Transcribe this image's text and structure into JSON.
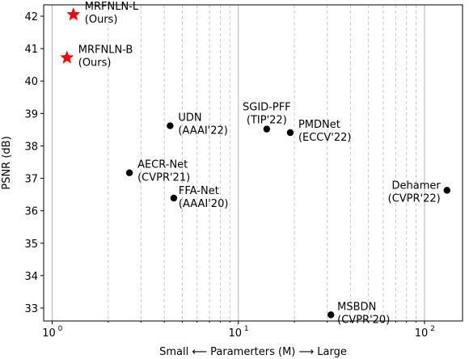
{
  "chart_data": {
    "type": "scatter",
    "title": "",
    "xlabel": "Small ⟵ Paramerters (M) ⟶ Large",
    "ylabel": "PSNR (dB)",
    "xscale": "log",
    "xlim": [
      0.9,
      160
    ],
    "ylim": [
      32.6,
      42.35
    ],
    "grid": "x-axis major (solid) and minor (dashed) lines",
    "x_ticks": [
      {
        "value": 1,
        "label": "10",
        "exp": "0"
      },
      {
        "value": 10,
        "label": "10",
        "exp": "1"
      },
      {
        "value": 100,
        "label": "10",
        "exp": "2"
      }
    ],
    "y_ticks": [
      {
        "value": 33,
        "label": "33"
      },
      {
        "value": 34,
        "label": "34"
      },
      {
        "value": 35,
        "label": "35"
      },
      {
        "value": 36,
        "label": "36"
      },
      {
        "value": 37,
        "label": "37"
      },
      {
        "value": 38,
        "label": "38"
      },
      {
        "value": 39,
        "label": "39"
      },
      {
        "value": 40,
        "label": "40"
      },
      {
        "value": 41,
        "label": "41"
      },
      {
        "value": 42,
        "label": "42"
      }
    ],
    "points": [
      {
        "x": 1.3,
        "y": 42.05,
        "marker": "star",
        "color": "#ff0000",
        "lines": [
          "MRFNLN-L",
          "(Ours)"
        ],
        "anchor": "start"
      },
      {
        "x": 1.2,
        "y": 40.72,
        "marker": "star",
        "color": "#ff0000",
        "lines": [
          "MRFNLN-B",
          "(Ours)"
        ],
        "anchor": "start"
      },
      {
        "x": 4.3,
        "y": 38.62,
        "marker": "dot",
        "color": "#000000",
        "lines": [
          "UDN",
          "(AAAI'22)"
        ],
        "anchor": "start"
      },
      {
        "x": 14.2,
        "y": 38.52,
        "marker": "dot",
        "color": "#000000",
        "lines": [
          "SGID-PFF",
          "(TIP'22)"
        ],
        "anchor": "middle"
      },
      {
        "x": 19.0,
        "y": 38.41,
        "marker": "dot",
        "color": "#000000",
        "lines": [
          "PMDNet",
          "(ECCV'22)"
        ],
        "anchor": "start"
      },
      {
        "x": 2.6,
        "y": 37.17,
        "marker": "dot",
        "color": "#000000",
        "lines": [
          "AECR-Net",
          "(CVPR'21)"
        ],
        "anchor": "start"
      },
      {
        "x": 4.5,
        "y": 36.39,
        "marker": "dot",
        "color": "#000000",
        "lines": [
          "FFA-Net",
          "(AAAI'20)"
        ],
        "anchor": "start"
      },
      {
        "x": 132,
        "y": 36.63,
        "marker": "dot",
        "color": "#000000",
        "lines": [
          "Dehamer",
          "(CVPR'22)"
        ],
        "anchor": "end"
      },
      {
        "x": 31.4,
        "y": 32.79,
        "marker": "dot",
        "color": "#000000",
        "lines": [
          "MSBDN",
          "(CVPR'20)"
        ],
        "anchor": "start"
      }
    ]
  }
}
